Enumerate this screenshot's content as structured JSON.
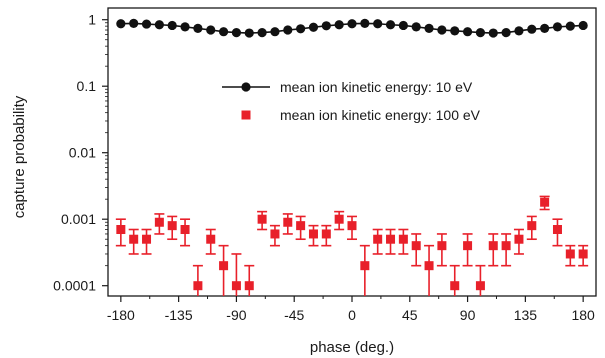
{
  "chart_data": {
    "type": "scatter",
    "xlabel": "phase (deg.)",
    "ylabel": "capture probability",
    "xlim": [
      -190,
      190
    ],
    "ylim": [
      7e-05,
      1.5
    ],
    "y_scale": "log",
    "grid": false,
    "legend_position": "center-right",
    "x_ticks": [
      -180,
      -135,
      -90,
      -45,
      0,
      45,
      90,
      135,
      180
    ],
    "x_tick_labels": [
      "-180",
      "-135",
      "-90",
      "-45",
      "0",
      "45",
      "90",
      "135",
      "180"
    ],
    "y_ticks": [
      0.0001,
      0.001,
      0.01,
      0.1,
      1
    ],
    "y_tick_labels": [
      "0.0001",
      "0.001",
      "0.01",
      "0.1",
      "1"
    ],
    "series": [
      {
        "name": "mean ion kinetic energy: 10 eV",
        "color": "#111111",
        "marker": "circle",
        "line": true,
        "x": [
          -180,
          -170,
          -160,
          -150,
          -140,
          -130,
          -120,
          -110,
          -100,
          -90,
          -80,
          -70,
          -60,
          -50,
          -40,
          -30,
          -20,
          -10,
          0,
          10,
          20,
          30,
          40,
          50,
          60,
          70,
          80,
          90,
          100,
          110,
          120,
          130,
          140,
          150,
          160,
          170,
          180
        ],
        "y": [
          0.87,
          0.88,
          0.86,
          0.84,
          0.82,
          0.78,
          0.74,
          0.7,
          0.66,
          0.64,
          0.63,
          0.64,
          0.66,
          0.7,
          0.73,
          0.77,
          0.81,
          0.84,
          0.87,
          0.88,
          0.87,
          0.84,
          0.82,
          0.78,
          0.74,
          0.7,
          0.68,
          0.66,
          0.64,
          0.63,
          0.64,
          0.68,
          0.72,
          0.74,
          0.78,
          0.8,
          0.82
        ]
      },
      {
        "name": "mean ion kinetic energy: 100 eV",
        "color": "#e8202a",
        "marker": "square",
        "line": false,
        "x": [
          -180,
          -170,
          -160,
          -150,
          -140,
          -130,
          -120,
          -110,
          -100,
          -90,
          -80,
          -70,
          -60,
          -50,
          -40,
          -30,
          -20,
          -10,
          0,
          10,
          20,
          30,
          40,
          50,
          60,
          70,
          80,
          90,
          100,
          110,
          120,
          130,
          140,
          150,
          160,
          170,
          180
        ],
        "y": [
          0.0007,
          0.0005,
          0.0005,
          0.0009,
          0.0008,
          0.0007,
          0.0001,
          0.0005,
          0.0002,
          0.0001,
          0.0001,
          0.001,
          0.0006,
          0.0009,
          0.0008,
          0.0006,
          0.0006,
          0.001,
          0.0008,
          0.0002,
          0.0005,
          0.0005,
          0.0005,
          0.0004,
          0.0002,
          0.0004,
          0.0001,
          0.0004,
          0.0001,
          0.0004,
          0.0004,
          0.0005,
          0.0008,
          0.0018,
          0.0007,
          0.0003,
          0.0003
        ],
        "y_err_low": [
          0.0003,
          0.0002,
          0.0002,
          0.0003,
          0.0003,
          0.0003,
          8e-05,
          0.0002,
          0.00015,
          9e-05,
          9e-05,
          0.0003,
          0.0002,
          0.0003,
          0.0003,
          0.0002,
          0.0002,
          0.0003,
          0.0003,
          0.00015,
          0.0002,
          0.0002,
          0.0002,
          0.0002,
          0.00015,
          0.0002,
          9e-05,
          0.0002,
          9e-05,
          0.0002,
          0.0002,
          0.0002,
          0.0003,
          0.0004,
          0.0003,
          0.0001,
          0.0001
        ],
        "y_err_high": [
          0.0003,
          0.0002,
          0.0002,
          0.0003,
          0.0003,
          0.0003,
          0.0001,
          0.0002,
          0.0002,
          0.0002,
          0.0001,
          0.0003,
          0.0002,
          0.0003,
          0.0003,
          0.0002,
          0.0002,
          0.0003,
          0.0003,
          0.0002,
          0.0002,
          0.0002,
          0.0002,
          0.0002,
          0.0002,
          0.0002,
          0.0001,
          0.0002,
          0.0001,
          0.0002,
          0.0002,
          0.0002,
          0.0003,
          0.0004,
          0.0003,
          0.0001,
          0.0001
        ]
      }
    ]
  }
}
